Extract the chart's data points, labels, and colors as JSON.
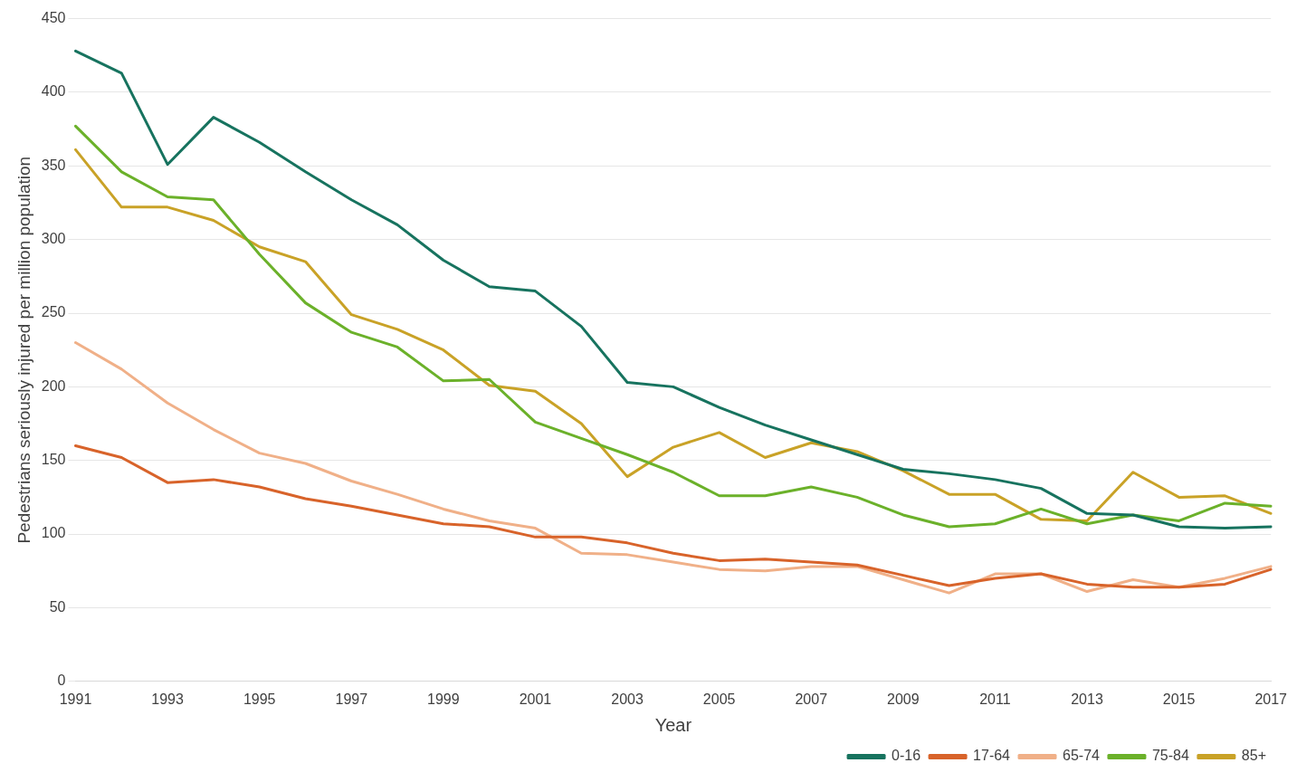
{
  "chart_data": {
    "type": "line",
    "xlabel": "Year",
    "ylabel": "Pedestrians seriously injured per million population",
    "categories": [
      "1991",
      null,
      "1993",
      null,
      "1995",
      null,
      "1997",
      null,
      "1999",
      null,
      "2001",
      null,
      "2003",
      null,
      "2005",
      null,
      "2007",
      null,
      "2009",
      null,
      "2011",
      null,
      "2013",
      null,
      "2015",
      null,
      "2017"
    ],
    "series": [
      {
        "name": "0-16",
        "color": "#17735f",
        "values": [
          428,
          413,
          351,
          383,
          366,
          346,
          327,
          310,
          286,
          268,
          265,
          241,
          203,
          200,
          186,
          174,
          164,
          154,
          144,
          141,
          137,
          131,
          114,
          113,
          105,
          104,
          105
        ]
      },
      {
        "name": "17-64",
        "color": "#d8632a",
        "values": [
          160,
          152,
          135,
          137,
          132,
          124,
          119,
          113,
          107,
          105,
          98,
          98,
          94,
          87,
          82,
          83,
          81,
          79,
          72,
          65,
          70,
          73,
          66,
          64,
          64,
          66,
          76
        ]
      },
      {
        "name": "65-74",
        "color": "#f0b088",
        "values": [
          230,
          212,
          189,
          171,
          155,
          148,
          136,
          127,
          117,
          109,
          104,
          87,
          86,
          81,
          76,
          75,
          78,
          78,
          69,
          60,
          73,
          73,
          61,
          69,
          64,
          70,
          78
        ]
      },
      {
        "name": "75-84",
        "color": "#6bb12a",
        "values": [
          377,
          346,
          329,
          327,
          290,
          257,
          237,
          227,
          204,
          205,
          176,
          165,
          154,
          142,
          126,
          126,
          132,
          125,
          113,
          105,
          107,
          117,
          107,
          113,
          109,
          121,
          119
        ]
      },
      {
        "name": "85+",
        "color": "#c9a227",
        "values": [
          361,
          322,
          322,
          313,
          295,
          285,
          249,
          239,
          225,
          201,
          197,
          175,
          139,
          159,
          169,
          152,
          162,
          156,
          143,
          127,
          127,
          110,
          109,
          142,
          125,
          126,
          114
        ]
      }
    ],
    "ylim": [
      0,
      450
    ],
    "yticks": [
      0,
      50,
      100,
      150,
      200,
      250,
      300,
      350,
      400,
      450
    ],
    "grid": "y",
    "legend": "bottom right",
    "marker": "none",
    "line_style": "solid"
  }
}
